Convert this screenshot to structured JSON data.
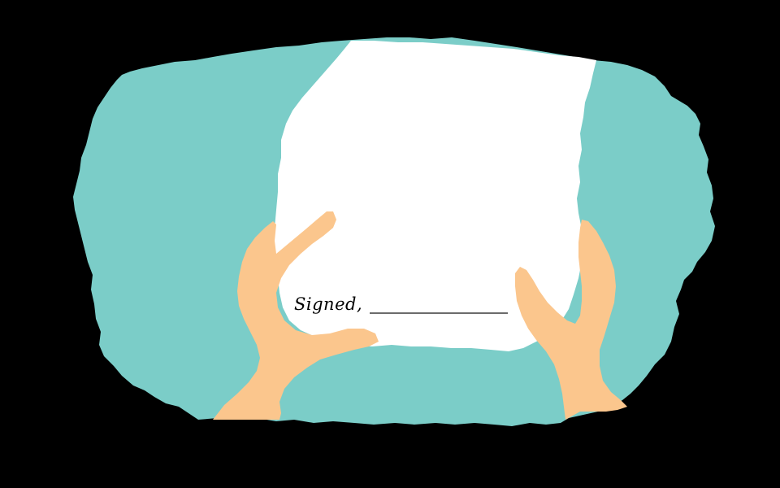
{
  "note": {
    "signed_label": "Signed,"
  },
  "colors": {
    "background": "#000000",
    "backdrop": "#7bcdc8",
    "paper": "#ffffff",
    "skin": "#fbc68d",
    "signature_line": "#6b6b6b"
  }
}
